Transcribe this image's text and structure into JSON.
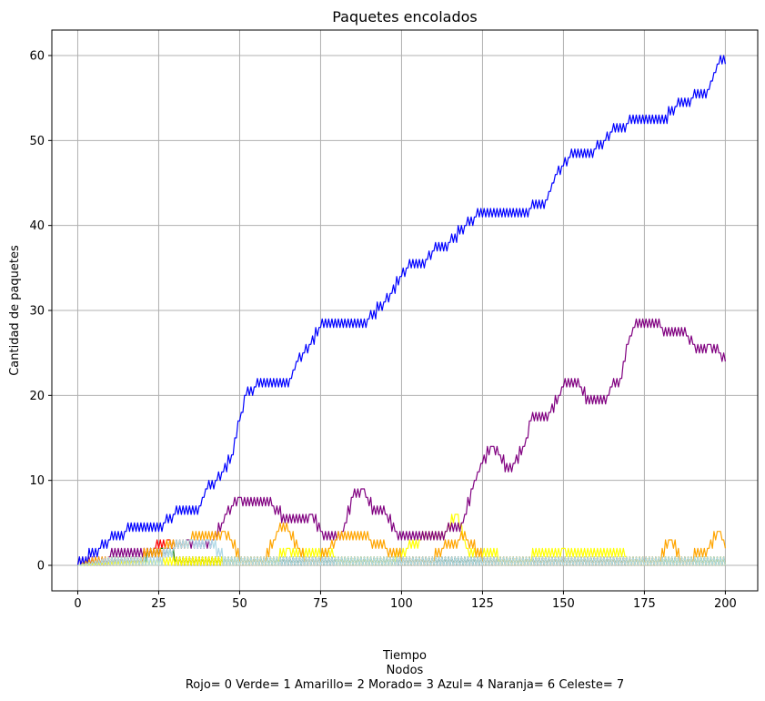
{
  "chart_data": {
    "type": "line",
    "title": "Paquetes encolados",
    "xlabel": "Tiempo",
    "xlabel_lines": [
      "Nodos",
      "Rojo= 0  Verde= 1  Amarillo= 2  Morado= 3 Azul= 4 Naranja= 6 Celeste= 7"
    ],
    "ylabel": "Cantidad de paquetes",
    "xlim": [
      -8,
      210
    ],
    "ylim": [
      -3,
      63
    ],
    "xticks": [
      0,
      25,
      50,
      75,
      100,
      125,
      150,
      175,
      200
    ],
    "yticks": [
      0,
      10,
      20,
      30,
      40,
      50,
      60
    ],
    "grid": true,
    "series": [
      {
        "name": "Rojo (nodo 0)",
        "color": "#ff0000",
        "x": [
          0,
          10,
          20,
          28,
          30,
          40,
          55,
          70,
          90,
          110,
          121,
          140,
          160,
          180,
          195,
          200
        ],
        "y": [
          0,
          1,
          1,
          3,
          1,
          1,
          1,
          1,
          1,
          1,
          1,
          1,
          1,
          1,
          1,
          1
        ]
      },
      {
        "name": "Verde (nodo 1)",
        "color": "#008000",
        "x": [
          0,
          10,
          21,
          26,
          30,
          45,
          60,
          80,
          100,
          120,
          130,
          150,
          170,
          190,
          200
        ],
        "y": [
          0,
          1,
          1,
          2,
          1,
          1,
          1,
          1,
          1,
          1,
          1,
          1,
          1,
          1,
          1
        ]
      },
      {
        "name": "Amarillo (nodo 2)",
        "color": "#ffff00",
        "x": [
          0,
          30,
          45,
          62,
          65,
          80,
          98,
          106,
          112,
          117,
          120,
          130,
          140,
          150,
          170,
          180,
          200
        ],
        "y": [
          0,
          1,
          1,
          1,
          2,
          1,
          1,
          3,
          3,
          6,
          2,
          1,
          1,
          2,
          1,
          1,
          1
        ]
      },
      {
        "name": "Morado (nodo 3)",
        "color": "#800080",
        "x": [
          0,
          10,
          20,
          28,
          34,
          40,
          42,
          46,
          50,
          55,
          60,
          65,
          70,
          72,
          75,
          80,
          82,
          85,
          88,
          92,
          95,
          100,
          105,
          110,
          114,
          118,
          122,
          125,
          128,
          130,
          133,
          135,
          138,
          140,
          143,
          146,
          149,
          150,
          155,
          158,
          160,
          163,
          165,
          168,
          170,
          172,
          175,
          180,
          185,
          188,
          190,
          192,
          195,
          198,
          200
        ],
        "y": [
          0,
          1,
          1,
          2,
          3,
          2,
          3,
          6,
          8,
          7,
          7,
          5,
          5,
          6,
          4,
          3,
          4,
          8,
          9,
          6,
          6,
          3,
          3,
          3,
          4,
          4,
          9,
          12,
          14,
          13,
          11,
          12,
          14,
          17,
          17,
          18,
          20,
          21,
          21,
          19,
          19,
          19,
          21,
          22,
          26,
          28,
          28,
          28,
          27,
          27,
          26,
          25,
          26,
          25,
          24
        ]
      },
      {
        "name": "Azul (nodo 4)",
        "color": "#0000ff",
        "x": [
          0,
          10,
          15,
          20,
          25,
          27,
          30,
          33,
          36,
          38,
          40,
          43,
          45,
          48,
          50,
          52,
          55,
          60,
          65,
          68,
          70,
          72,
          75,
          80,
          85,
          90,
          95,
          100,
          102,
          105,
          108,
          110,
          113,
          115,
          120,
          123,
          125,
          130,
          135,
          140,
          145,
          148,
          150,
          152,
          155,
          160,
          163,
          165,
          168,
          170,
          175,
          180,
          185,
          190,
          195,
          198,
          200
        ],
        "y": [
          0,
          3,
          4,
          4,
          4,
          5,
          6,
          6,
          6,
          7,
          9,
          10,
          11,
          13,
          17,
          20,
          21,
          21,
          21,
          24,
          25,
          26,
          28,
          28,
          28,
          29,
          31,
          34,
          35,
          35,
          36,
          37,
          37,
          38,
          40,
          41,
          41,
          41,
          41,
          42,
          43,
          46,
          47,
          48,
          48,
          49,
          50,
          51,
          51,
          52,
          52,
          52,
          54,
          55,
          56,
          59,
          59
        ]
      },
      {
        "name": "Naranja (nodo 6)",
        "color": "#ffa500",
        "x": [
          0,
          5,
          10,
          20,
          27,
          30,
          35,
          40,
          45,
          47,
          50,
          55,
          58,
          62,
          65,
          68,
          70,
          75,
          78,
          80,
          85,
          90,
          95,
          100,
          105,
          110,
          113,
          115,
          118,
          120,
          125,
          130,
          140,
          145,
          150,
          160,
          170,
          180,
          183,
          186,
          190,
          195,
          198,
          200
        ],
        "y": [
          0,
          1,
          1,
          1,
          2,
          2,
          3,
          3,
          4,
          3,
          1,
          1,
          1,
          4,
          4,
          2,
          1,
          1,
          2,
          3,
          3,
          3,
          2,
          1,
          1,
          1,
          2,
          2,
          3,
          3,
          1,
          1,
          1,
          1,
          1,
          1,
          1,
          1,
          3,
          1,
          1,
          2,
          4,
          2
        ]
      },
      {
        "name": "Celeste (nodo 7)",
        "color": "#add8e6",
        "x": [
          0,
          10,
          20,
          26,
          30,
          35,
          38,
          40,
          45,
          50,
          60,
          70,
          80,
          90,
          100,
          110,
          120,
          130,
          140,
          150,
          160,
          170,
          180,
          190,
          200
        ],
        "y": [
          0,
          1,
          1,
          1,
          2,
          3,
          2,
          3,
          1,
          1,
          1,
          1,
          1,
          1,
          1,
          1,
          1,
          1,
          1,
          1,
          1,
          1,
          1,
          1,
          1
        ]
      }
    ]
  }
}
